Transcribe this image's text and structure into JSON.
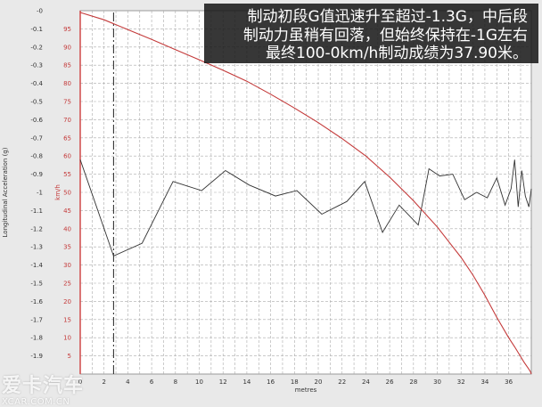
{
  "caption": {
    "line1": "制动初段G值迅速升至超过-1.3G，中后段",
    "line2": "制动力虽稍有回落，但始终保持在-1G左右",
    "line3": "最终100-0km/h制动成绩为37.90米。"
  },
  "watermark": {
    "logo": "爱卡汽车",
    "url": "XCAR.COM.CN"
  },
  "colors": {
    "speed": "#c43a3a",
    "accel": "#333333",
    "grid": "#aaaaaa",
    "plot_bg": "#ffffff",
    "frame_bg": "#e9e9e9"
  },
  "chart_data": {
    "type": "line",
    "xlabel": "metres",
    "xlim": [
      0,
      37.9
    ],
    "x_ticks": [
      "0",
      "2",
      "4",
      "6",
      "8",
      "10",
      "12",
      "14",
      "16",
      "18",
      "20",
      "22",
      "24",
      "26",
      "28",
      "30",
      "32",
      "34",
      "36"
    ],
    "grid": true,
    "left_axis": {
      "label": "Longitudinal Acceleration (g)",
      "ylim": [
        -2.0,
        0
      ],
      "ticks": [
        "-0",
        "-0.1",
        "-0.2",
        "-0.3",
        "-0.4",
        "-0.5",
        "-0.6",
        "-0.7",
        "-0.8",
        "-0.9",
        "-1",
        "-1.1",
        "-1.2",
        "-1.3",
        "-1.4",
        "-1.5",
        "-1.6",
        "-1.7",
        "-1.8",
        "-1.9"
      ]
    },
    "right_axis": {
      "label": "km/h",
      "ylim": [
        0,
        100
      ],
      "ticks": [
        "95",
        "90",
        "85",
        "80",
        "75",
        "70",
        "65",
        "60",
        "55",
        "50",
        "45",
        "40",
        "35",
        "30",
        "25",
        "20",
        "15",
        "10",
        "5"
      ]
    },
    "marker_x": 2.8,
    "series": [
      {
        "axis": "left",
        "x": [
          0,
          2.8,
          5.2,
          7.8,
          10.2,
          12.2,
          14.2,
          16.4,
          18.2,
          20.3,
          22.4,
          23.9,
          25.4,
          26.8,
          28.4,
          29.3,
          30.2,
          31.3,
          32.3,
          33.3,
          34.2,
          35.0,
          35.7,
          36.2,
          36.5,
          36.8,
          37.1,
          37.4,
          37.7,
          37.9
        ],
        "y": [
          -0.82,
          -1.35,
          -1.28,
          -0.94,
          -0.99,
          -0.88,
          -0.96,
          -1.02,
          -0.99,
          -1.12,
          -1.05,
          -0.94,
          -1.22,
          -1.07,
          -1.18,
          -0.87,
          -0.91,
          -0.9,
          -1.04,
          -1.0,
          -1.03,
          -0.92,
          -1.07,
          -0.98,
          -0.82,
          -1.08,
          -0.88,
          -1.02,
          -1.08,
          -0.98
        ]
      },
      {
        "axis": "right",
        "x": [
          0,
          2,
          4,
          6,
          8,
          10,
          12,
          14,
          16,
          18,
          20,
          22,
          24,
          26,
          28,
          30,
          32,
          33,
          34,
          35,
          36,
          36.5,
          37,
          37.3,
          37.6,
          37.8,
          37.9
        ],
        "y": [
          99.5,
          97.5,
          94.8,
          92.1,
          89.3,
          86.5,
          83.6,
          80.6,
          77.0,
          73.2,
          69.2,
          64.8,
          60.0,
          54.2,
          47.7,
          40.5,
          32.1,
          27.2,
          21.7,
          15.6,
          10.0,
          7.5,
          4.8,
          3.2,
          1.8,
          0.8,
          0.0
        ]
      }
    ]
  }
}
